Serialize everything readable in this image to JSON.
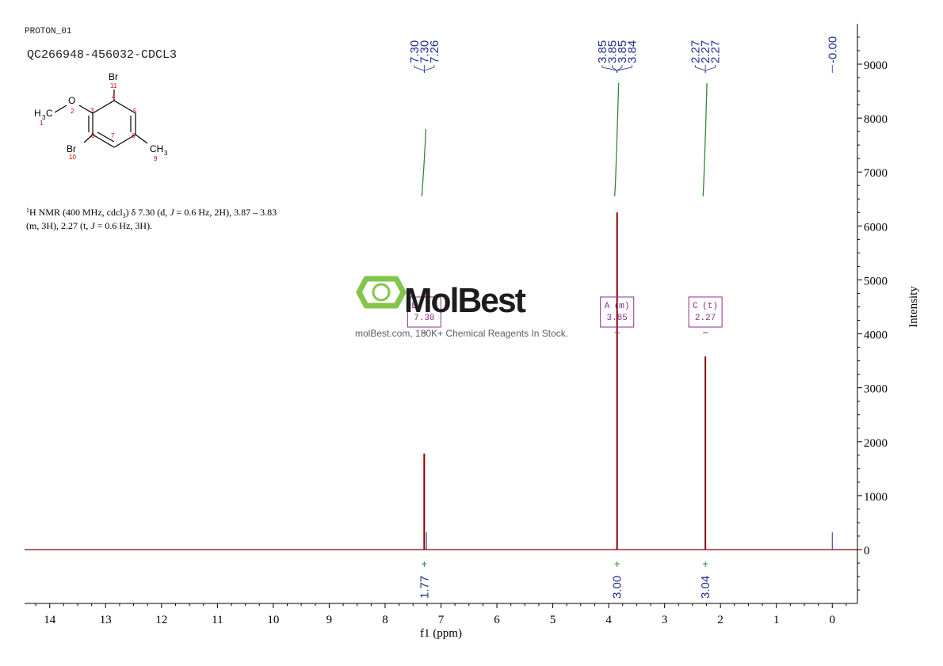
{
  "header": {
    "experiment": "PROTON_01",
    "sample": "QC266948-456032-CDCL3"
  },
  "molecule": {
    "atoms": {
      "br_top": "Br",
      "br_top_num": "11",
      "o": "O",
      "o_num": "2",
      "h3c": "H",
      "h3c_sub": "3",
      "h3c_c": "C",
      "h3c_num": "1",
      "br_bottom": "Br",
      "br_bottom_num": "10",
      "ch3": "CH",
      "ch3_sub": "3",
      "ch3_num": "9",
      "n3": "3",
      "n4": "4",
      "n5": "5",
      "n6": "6",
      "n7": "7",
      "n8": "8"
    }
  },
  "description": {
    "line1_prefix": "1",
    "line1_a": "H NMR (400 MHz, cdcl",
    "line1_sub": "3",
    "line1_b": ") δ 7.30 (d, ",
    "line1_j": "J",
    "line1_c": " = 0.6 Hz, 2H), 3.87 – 3.83",
    "line2_a": "(m, 3H), 2.27 (t, ",
    "line2_j": "J",
    "line2_b": " = 0.6 Hz, 3H)."
  },
  "watermark": {
    "brand": "MolBest",
    "tagline": "molBest.com, 180K+ Chemical Reagents In Stock."
  },
  "chart_data": {
    "type": "line",
    "title": "",
    "xlabel": "f1 (ppm)",
    "ylabel": "Intensity",
    "xlim": [
      14.45,
      -0.45
    ],
    "ylim": [
      -1000,
      9700
    ],
    "x_ticks": [
      14,
      13,
      12,
      11,
      10,
      9,
      8,
      7,
      6,
      5,
      4,
      3,
      2,
      1,
      0
    ],
    "y_ticks": [
      0,
      1000,
      2000,
      3000,
      4000,
      5000,
      6000,
      7000,
      8000,
      9000
    ],
    "grid": false,
    "series": [
      {
        "peaks": [
          {
            "ppm": 7.3,
            "height": 1780
          },
          {
            "ppm": 7.26,
            "height": 320
          },
          {
            "ppm": 3.85,
            "height": 6250
          },
          {
            "ppm": 2.27,
            "height": 3580
          },
          {
            "ppm": 0.0,
            "height": 320
          }
        ],
        "color": "#8b0000"
      }
    ],
    "peak_labels": {
      "groups": [
        {
          "labels": [
            "7.30",
            "7.30",
            "7.26"
          ],
          "ppm": [
            7.3,
            7.3,
            7.26
          ]
        },
        {
          "labels": [
            "3.85",
            "3.85",
            "3.85",
            "3.84"
          ],
          "ppm": [
            3.85,
            3.85,
            3.85,
            3.84
          ]
        },
        {
          "labels": [
            "2.27",
            "2.27",
            "2.27"
          ],
          "ppm": [
            2.27,
            2.27,
            2.27
          ]
        },
        {
          "labels": [
            "-0.00"
          ],
          "ppm": [
            0.0
          ]
        }
      ]
    },
    "multiplets": [
      {
        "name": "B",
        "mult": "",
        "shift": "7.30",
        "ppm": 7.3
      },
      {
        "name": "A",
        "mult": "(m)",
        "shift": "3.85",
        "ppm": 3.85
      },
      {
        "name": "C",
        "mult": "(t)",
        "shift": "2.27",
        "ppm": 2.27
      }
    ],
    "integrals": [
      {
        "ppm": 7.3,
        "value": "1.77"
      },
      {
        "ppm": 3.85,
        "value": "3.00"
      },
      {
        "ppm": 2.27,
        "value": "3.04"
      }
    ],
    "integral_curves": [
      {
        "ppm": 7.3,
        "from": 6550,
        "to": 7800
      },
      {
        "ppm": 3.85,
        "from": 6550,
        "to": 8650
      },
      {
        "ppm": 2.27,
        "from": 6550,
        "to": 8650
      }
    ],
    "colors": {
      "spectrum": "#8b0000",
      "labels": "#1f2f8f",
      "integral": "#2e8b2e",
      "multiplet": "#8b2f8b",
      "axis": "#000000",
      "logo": "#7cc242"
    }
  }
}
